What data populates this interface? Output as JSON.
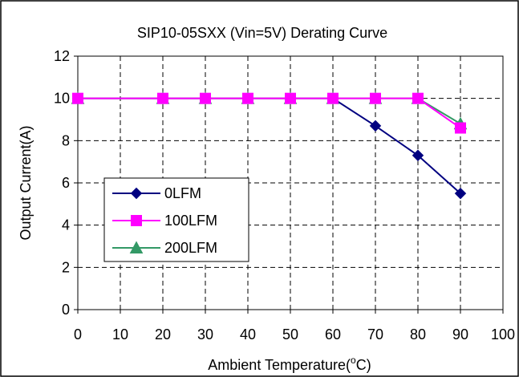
{
  "chart_data": {
    "type": "line",
    "title": "SIP10-05SXX  (Vin=5V) Derating Curve",
    "xlabel_main": "Ambient Temperature(",
    "xlabel_sup": "o",
    "xlabel_end": "C)",
    "ylabel": "Output Current(A)",
    "xlim": [
      0,
      100
    ],
    "ylim": [
      0,
      12
    ],
    "x_ticks": [
      "0",
      "10",
      "20",
      "30",
      "40",
      "50",
      "60",
      "70",
      "80",
      "90",
      "100"
    ],
    "y_ticks": [
      "0",
      "2",
      "4",
      "6",
      "8",
      "10",
      "12"
    ],
    "grid": true,
    "legend_position": "left",
    "series": [
      {
        "name": "0LFM",
        "color": "#000080",
        "marker": "diamond",
        "x": [
          0,
          20,
          30,
          40,
          50,
          60,
          70,
          80,
          90
        ],
        "y": [
          10,
          10,
          10,
          10,
          10,
          10,
          8.7,
          7.3,
          5.5
        ]
      },
      {
        "name": "100LFM",
        "color": "#ff00ff",
        "marker": "square",
        "x": [
          0,
          20,
          30,
          40,
          50,
          60,
          70,
          80,
          90
        ],
        "y": [
          10,
          10,
          10,
          10,
          10,
          10,
          10,
          10,
          8.6
        ]
      },
      {
        "name": "200LFM",
        "color": "#339966",
        "marker": "triangle",
        "x": [
          0,
          20,
          30,
          40,
          50,
          60,
          70,
          80,
          90
        ],
        "y": [
          10,
          10,
          10,
          10,
          10,
          10,
          10,
          10,
          8.8
        ]
      }
    ]
  }
}
